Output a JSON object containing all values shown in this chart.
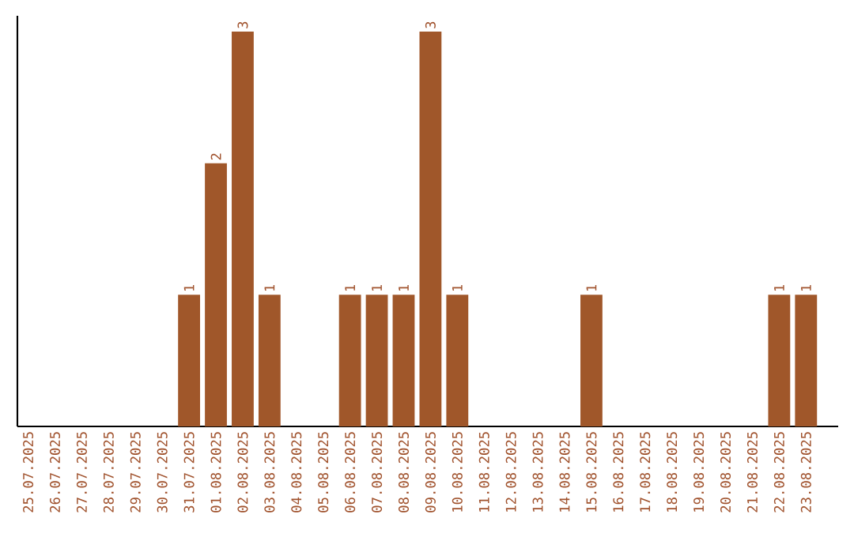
{
  "chart_data": {
    "type": "bar",
    "categories": [
      "25.07.2025",
      "26.07.2025",
      "27.07.2025",
      "28.07.2025",
      "29.07.2025",
      "30.07.2025",
      "31.07.2025",
      "01.08.2025",
      "02.08.2025",
      "03.08.2025",
      "04.08.2025",
      "05.08.2025",
      "06.08.2025",
      "07.08.2025",
      "08.08.2025",
      "09.08.2025",
      "10.08.2025",
      "11.08.2025",
      "12.08.2025",
      "13.08.2025",
      "14.08.2025",
      "15.08.2025",
      "16.08.2025",
      "17.08.2025",
      "18.08.2025",
      "19.08.2025",
      "20.08.2025",
      "21.08.2025",
      "22.08.2025",
      "23.08.2025"
    ],
    "values": [
      0,
      0,
      0,
      0,
      0,
      0,
      1,
      2,
      3,
      1,
      0,
      0,
      1,
      1,
      1,
      3,
      1,
      0,
      0,
      0,
      0,
      1,
      0,
      0,
      0,
      0,
      0,
      0,
      1,
      1
    ],
    "value_labels": [
      null,
      null,
      null,
      null,
      null,
      null,
      "1",
      "2",
      "3",
      "1",
      null,
      null,
      "1",
      "1",
      "1",
      "3",
      "1",
      null,
      null,
      null,
      null,
      "1",
      null,
      null,
      null,
      null,
      null,
      null,
      "1",
      "1"
    ],
    "color": "#a0572a"
  }
}
